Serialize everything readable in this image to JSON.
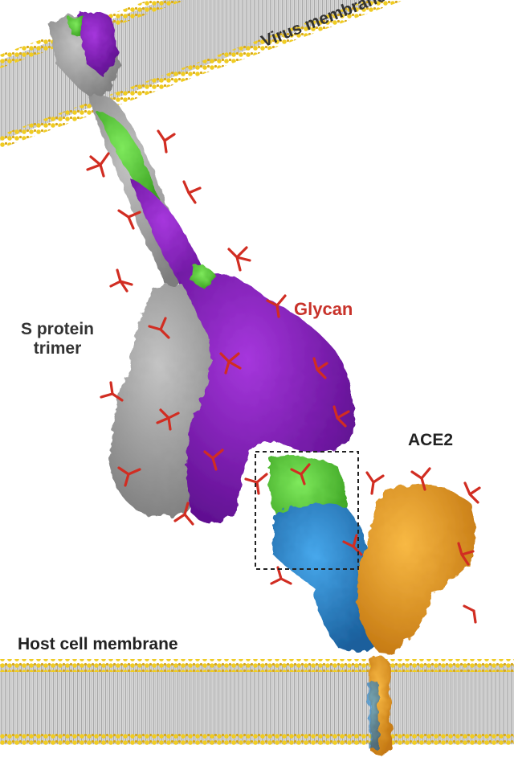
{
  "labels": {
    "virus_membrane": "Virus membrane",
    "glycan": "Glycan",
    "s_protein_line1": "S protein",
    "s_protein_line2": "trimer",
    "ace2": "ACE2",
    "host_cell_membrane": "Host cell membrane"
  },
  "colors": {
    "background": "#ffffff",
    "lipid_tail": "#c9c9c9",
    "lipid_head": "#e9c21c",
    "s_protein_gray": "#a3a3a3",
    "s_protein_purple": "#8a1fbf",
    "s_protein_green": "#5ad13a",
    "rbd_blue": "#2f8fd6",
    "ace2_orange": "#eda12b",
    "glycan_red": "#d12d22",
    "glycan_label": "#c8322a"
  }
}
